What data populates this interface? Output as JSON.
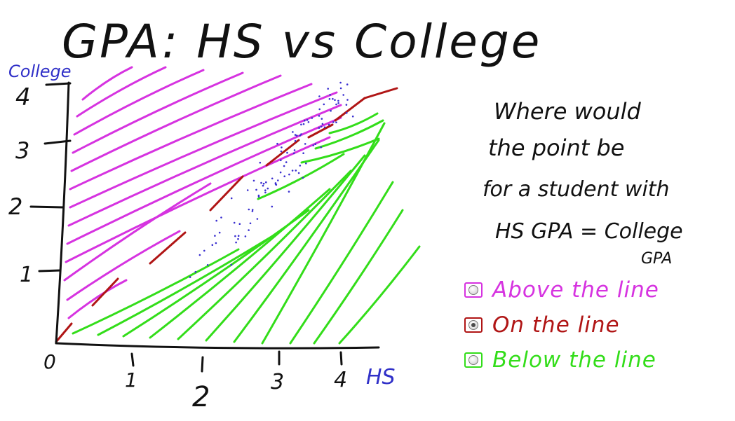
{
  "title": "GPA: HS vs College",
  "axes": {
    "y_label": "College",
    "x_label": "HS",
    "y_ticks": [
      "1",
      "2",
      "3",
      "4"
    ],
    "x_ticks": [
      "1",
      "2",
      "3",
      "4"
    ],
    "origin": "0"
  },
  "question": {
    "lines": [
      "Where would",
      "the point be",
      "for a student with",
      "HS GPA = College",
      "GPA"
    ]
  },
  "choices": [
    {
      "label": "Above the line",
      "color": "#d633e0",
      "selected": false
    },
    {
      "label": "On the line",
      "color": "#b01515",
      "selected": true
    },
    {
      "label": "Below the line",
      "color": "#33dd1a",
      "selected": false
    }
  ],
  "colors": {
    "above": "#d633e0",
    "on_line": "#b01515",
    "below": "#33dd1a",
    "axis_label": "#3030c8",
    "ink": "#111111",
    "scatter": "#3a2fd0"
  }
}
